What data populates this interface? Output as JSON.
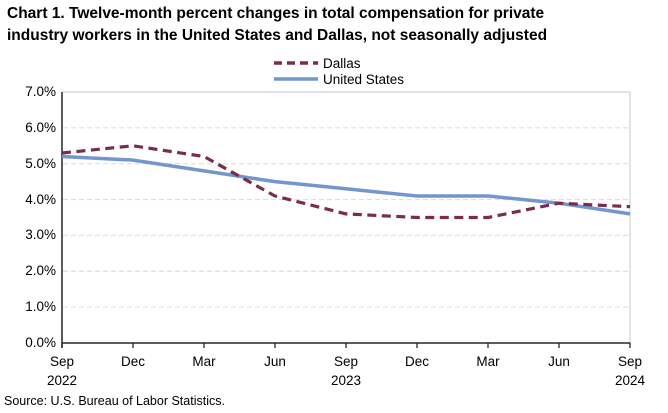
{
  "title": {
    "line1": "Chart 1. Twelve-month percent changes in total compensation for private",
    "line2": "industry workers in the United States and Dallas, not seasonally adjusted"
  },
  "legend": {
    "items": [
      {
        "label": "Dallas",
        "style": "dashed"
      },
      {
        "label": "United States",
        "style": "solid"
      }
    ]
  },
  "source": "Source: U.S. Bureau of Labor Statistics.",
  "chart_data": {
    "type": "line",
    "title": "Chart 1. Twelve-month percent changes in total compensation for private industry workers in the United States and Dallas, not seasonally adjusted",
    "categories": [
      "Sep 2022",
      "Dec 2022",
      "Mar 2023",
      "Jun 2023",
      "Sep 2023",
      "Dec 2023",
      "Mar 2024",
      "Jun 2024",
      "Sep 2024"
    ],
    "x_tick_labels": [
      "Sep",
      "Dec",
      "Mar",
      "Jun",
      "Sep",
      "Dec",
      "Mar",
      "Jun",
      "Sep"
    ],
    "x_year_labels": [
      {
        "index": 0,
        "label": "2022"
      },
      {
        "index": 4,
        "label": "2023"
      },
      {
        "index": 8,
        "label": "2024"
      }
    ],
    "y_tick_labels": [
      "0.0%",
      "1.0%",
      "2.0%",
      "3.0%",
      "4.0%",
      "5.0%",
      "6.0%",
      "7.0%"
    ],
    "ylim": [
      0,
      7
    ],
    "y_step": 1,
    "unit": "percent",
    "grid": "horizontal-dashed",
    "legend_position": "top-center",
    "series": [
      {
        "name": "Dallas",
        "style": "dashed",
        "color": "#7B2C4C",
        "values": [
          5.3,
          5.5,
          5.2,
          4.1,
          3.6,
          3.5,
          3.5,
          3.9,
          3.8
        ]
      },
      {
        "name": "United States",
        "style": "solid",
        "color": "#7296CE",
        "values": [
          5.2,
          5.1,
          4.8,
          4.5,
          4.3,
          4.1,
          4.1,
          3.9,
          3.6
        ]
      }
    ]
  },
  "colors": {
    "axis": "#262626",
    "plot_border": "#D0D0D0",
    "gridline": "#D9D9D9",
    "background": "#FFFFFF",
    "text": "#000000"
  }
}
